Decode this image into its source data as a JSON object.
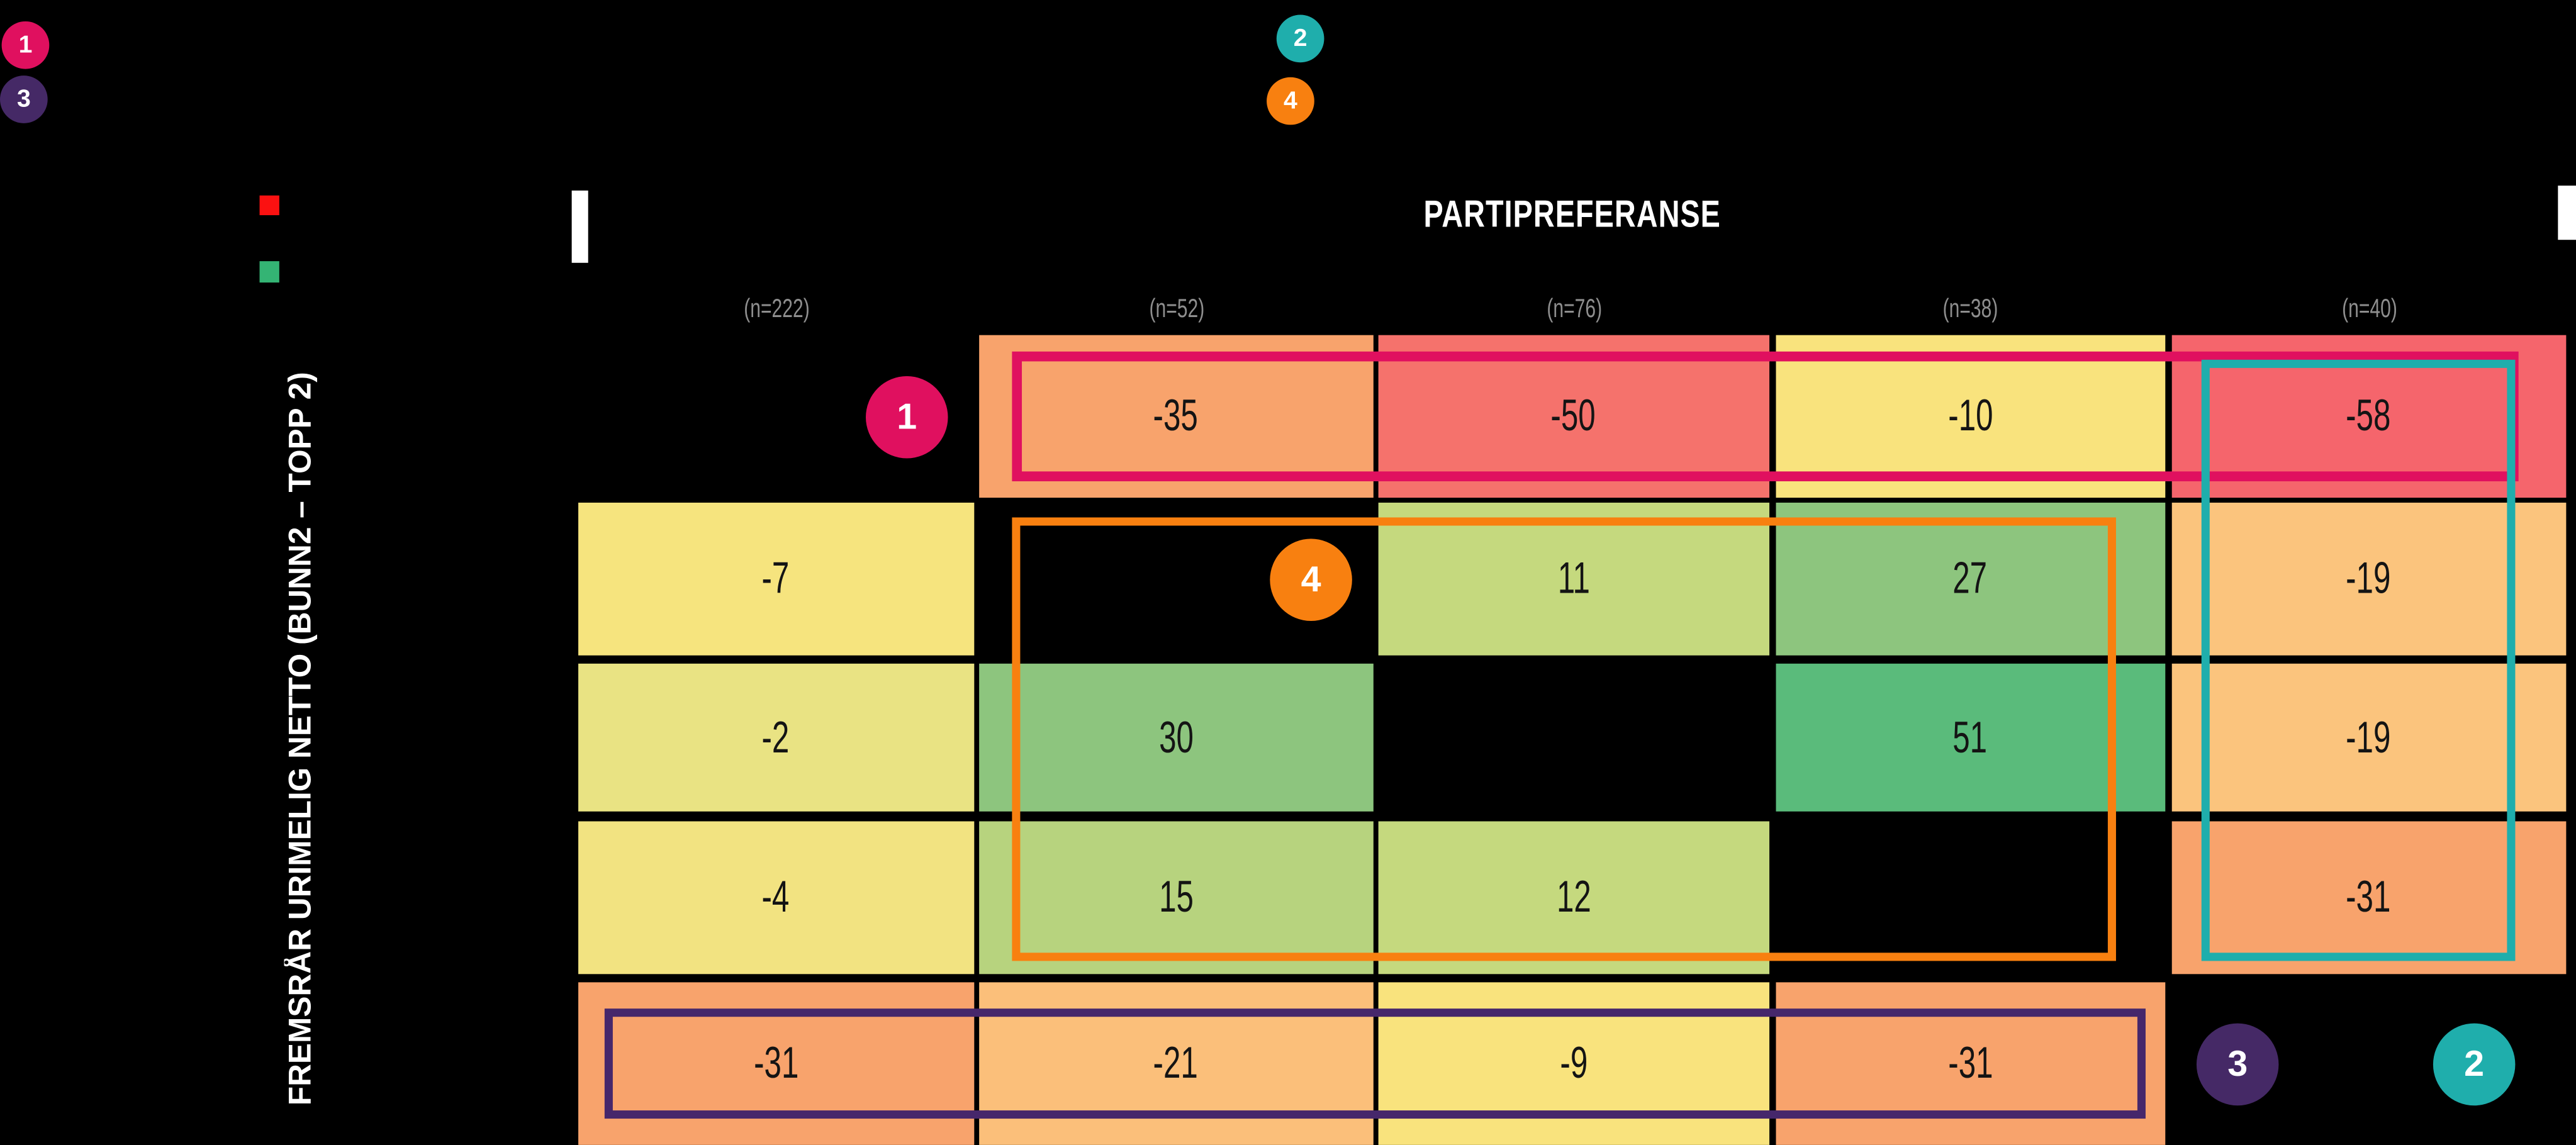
{
  "column_axis": {
    "title": "PARTIPREFERANSE",
    "title_color": "#FFFFFF"
  },
  "row_axis": {
    "label": "FREMSRÅR URIMELIG NETTO (BUNN2 – TOPP 2)",
    "label_color": "#FFFFFF"
  },
  "legend": {
    "swatches": [
      {
        "name": "red-swatch",
        "color": "#FB1111"
      },
      {
        "name": "green-swatch",
        "color": "#34B474"
      }
    ]
  },
  "corner_badges": [
    {
      "label": "1",
      "color": "#E0105F",
      "position": "top-left-1"
    },
    {
      "label": "3",
      "color": "#452966",
      "position": "top-left-2"
    },
    {
      "label": "2",
      "color": "#1FAEAC",
      "position": "top-center-1"
    },
    {
      "label": "4",
      "color": "#F88010",
      "position": "top-center-2"
    }
  ],
  "chart_data": {
    "type": "heatmap",
    "title": "PARTIPREFERANSE",
    "ylabel": "FREMSRÅR URIMELIG NETTO (BUNN2 – TOPP 2)",
    "column_headers": [
      "(n=222)",
      "(n=52)",
      "(n=76)",
      "(n=38)",
      "(n=40)"
    ],
    "header_color": "#8E8E8E",
    "value_color": "#141414",
    "grid": "5 columns x 5 rows, null = masked black cell",
    "values": [
      [
        null,
        -35,
        -50,
        -10,
        -58
      ],
      [
        -7,
        null,
        11,
        27,
        -19
      ],
      [
        -2,
        30,
        null,
        51,
        -19
      ],
      [
        -4,
        15,
        12,
        null,
        -31
      ],
      [
        -31,
        -21,
        -9,
        -31,
        null
      ]
    ],
    "cell_colors": [
      [
        null,
        "#F8A36C",
        "#F5726C",
        "#F9E37D",
        "#F5656C"
      ],
      [
        "#F6E47E",
        null,
        "#C5D97E",
        "#8DC57E",
        "#FBC47D"
      ],
      [
        "#E9E383",
        "#8DC57E",
        null,
        "#5ABB7B",
        "#FBC47D"
      ],
      [
        "#F2E381",
        "#B7D37E",
        "#C5D97E",
        null,
        "#F8A36C"
      ],
      [
        "#F8A36C",
        "#FBBF7A",
        "#F9E37D",
        "#F8A36C",
        null
      ]
    ],
    "highlight_boxes": [
      {
        "id": "1",
        "color": "#E0105F",
        "spans": "row 1, columns 2-5"
      },
      {
        "id": "4",
        "color": "#F88010",
        "spans": "rows 2-4, columns 2-4"
      },
      {
        "id": "2",
        "color": "#1FAEAC",
        "spans": "rows 1-4, column 5"
      },
      {
        "id": "3",
        "color": "#46276B",
        "spans": "row 5, columns 1-4"
      }
    ],
    "cell_badges": [
      {
        "label": "1",
        "color": "#E0105F",
        "row": 0,
        "col": 0,
        "halign": "right"
      },
      {
        "label": "4",
        "color": "#F88010",
        "row": 1,
        "col": 1,
        "halign": "right"
      },
      {
        "label": "3",
        "color": "#452966",
        "row": 4,
        "col": 4,
        "halign": "left"
      },
      {
        "label": "2",
        "color": "#1FAEAC",
        "row": 4,
        "col": 4,
        "halign": "right"
      }
    ]
  }
}
